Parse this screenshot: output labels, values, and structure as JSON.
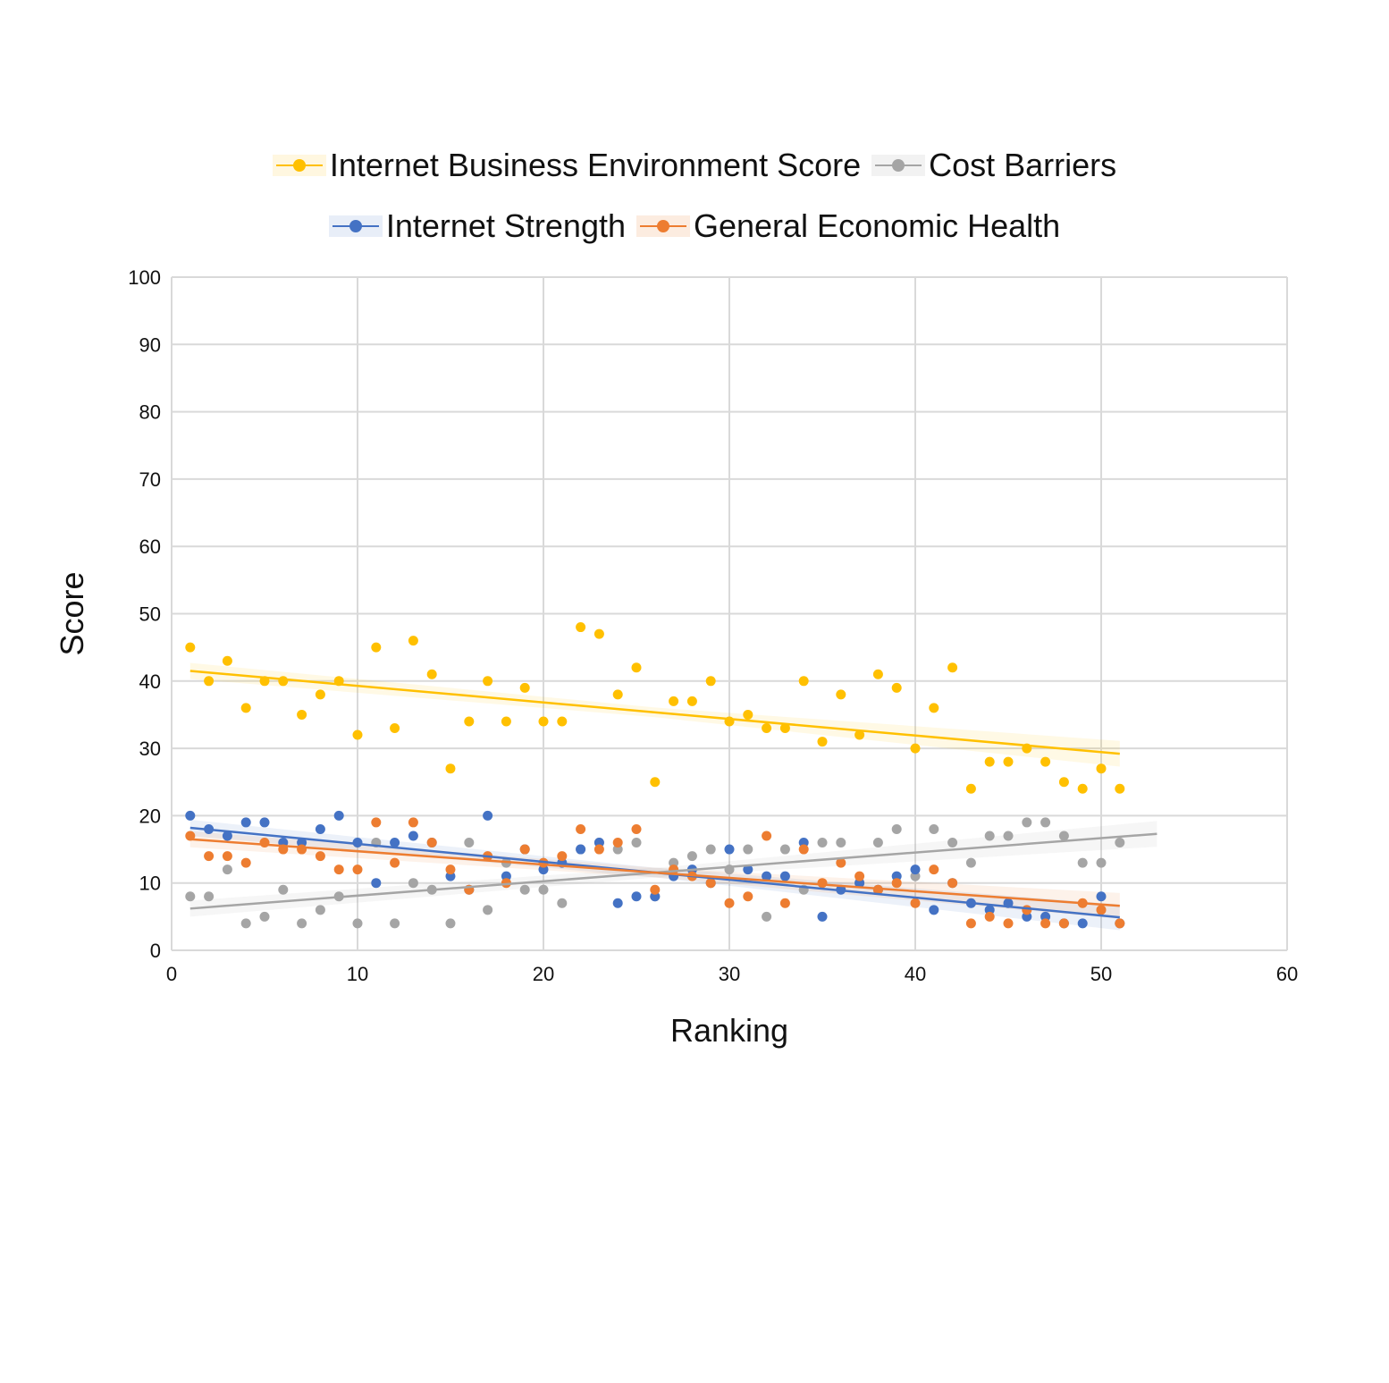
{
  "chart_data": {
    "type": "scatter",
    "title": "",
    "xlabel": "Ranking",
    "ylabel": "Score",
    "xlim": [
      0,
      60
    ],
    "ylim": [
      0,
      100
    ],
    "x_ticks": [
      0,
      10,
      20,
      30,
      40,
      50,
      60
    ],
    "y_ticks": [
      0,
      10,
      20,
      30,
      40,
      50,
      60,
      70,
      80,
      90,
      100
    ],
    "grid": true,
    "legend_placement": "top",
    "series": [
      {
        "name": "Internet Business Environment Score",
        "color": "#FFC000",
        "x": [
          1,
          2,
          3,
          4,
          5,
          6,
          7,
          8,
          9,
          10,
          11,
          12,
          13,
          14,
          15,
          16,
          17,
          18,
          19,
          20,
          21,
          22,
          23,
          24,
          25,
          26,
          27,
          28,
          29,
          30,
          31,
          32,
          33,
          34,
          35,
          36,
          37,
          38,
          39,
          40,
          41,
          42,
          43,
          44,
          45,
          46,
          47,
          48,
          49,
          50,
          51
        ],
        "y": [
          45,
          40,
          43,
          36,
          40,
          40,
          35,
          38,
          40,
          32,
          45,
          33,
          46,
          41,
          27,
          34,
          40,
          34,
          39,
          34,
          34,
          48,
          47,
          38,
          42,
          25,
          37,
          37,
          40,
          34,
          35,
          33,
          33,
          40,
          31,
          38,
          32,
          41,
          39,
          30,
          36,
          42,
          24,
          28,
          28,
          30,
          28,
          25,
          24,
          27,
          24
        ],
        "trendline": {
          "x": [
            1,
            51
          ],
          "y": [
            41.5,
            29.2
          ]
        }
      },
      {
        "name": "Cost Barriers",
        "color": "#A5A5A5",
        "x": [
          1,
          2,
          3,
          4,
          5,
          6,
          7,
          8,
          9,
          10,
          11,
          12,
          13,
          14,
          15,
          16,
          17,
          18,
          19,
          20,
          21,
          22,
          23,
          24,
          25,
          26,
          27,
          28,
          29,
          30,
          31,
          32,
          33,
          34,
          35,
          36,
          37,
          38,
          39,
          40,
          41,
          42,
          43,
          44,
          45,
          46,
          47,
          48,
          49,
          50,
          51
        ],
        "y": [
          8,
          8,
          12,
          4,
          5,
          9,
          4,
          6,
          8,
          4,
          16,
          4,
          10,
          9,
          4,
          16,
          6,
          13,
          9,
          9,
          7,
          15,
          16,
          15,
          16,
          8,
          13,
          14,
          15,
          12,
          15,
          5,
          15,
          9,
          16,
          16,
          10,
          16,
          18,
          11,
          18,
          16,
          13,
          17,
          17,
          19,
          19,
          17,
          13,
          13,
          16
        ],
        "trendline": {
          "x": [
            1,
            53
          ],
          "y": [
            6.2,
            17.3
          ]
        }
      },
      {
        "name": "Internet Strength",
        "color": "#4472C4",
        "x": [
          1,
          2,
          3,
          4,
          5,
          6,
          7,
          8,
          9,
          10,
          11,
          12,
          13,
          14,
          15,
          16,
          17,
          18,
          19,
          20,
          21,
          22,
          23,
          24,
          25,
          26,
          27,
          28,
          29,
          30,
          31,
          32,
          33,
          34,
          35,
          36,
          37,
          38,
          39,
          40,
          41,
          42,
          43,
          44,
          45,
          46,
          47,
          48,
          49,
          50,
          51
        ],
        "y": [
          20,
          18,
          17,
          19,
          19,
          16,
          16,
          18,
          20,
          16,
          10,
          16,
          17,
          16,
          11,
          9,
          20,
          11,
          15,
          12,
          13,
          15,
          16,
          7,
          8,
          8,
          11,
          12,
          10,
          15,
          12,
          11,
          11,
          16,
          5,
          9,
          10,
          9,
          11,
          12,
          6,
          10,
          7,
          6,
          7,
          5,
          5,
          4,
          4,
          8,
          4
        ],
        "trendline": {
          "x": [
            1,
            51
          ],
          "y": [
            18.2,
            4.9
          ]
        }
      },
      {
        "name": "General Economic Health",
        "color": "#ED7D31",
        "x": [
          1,
          2,
          3,
          4,
          5,
          6,
          7,
          8,
          9,
          10,
          11,
          12,
          13,
          14,
          15,
          16,
          17,
          18,
          19,
          20,
          21,
          22,
          23,
          24,
          25,
          26,
          27,
          28,
          29,
          30,
          31,
          32,
          33,
          34,
          35,
          36,
          37,
          38,
          39,
          40,
          41,
          42,
          43,
          44,
          45,
          46,
          47,
          48,
          49,
          50,
          51
        ],
        "y": [
          17,
          14,
          14,
          13,
          16,
          15,
          15,
          14,
          12,
          12,
          19,
          13,
          19,
          16,
          12,
          9,
          14,
          10,
          15,
          13,
          14,
          18,
          15,
          16,
          18,
          9,
          12,
          11,
          10,
          7,
          8,
          17,
          7,
          15,
          10,
          13,
          11,
          9,
          10,
          7,
          12,
          10,
          4,
          5,
          4,
          6,
          4,
          4,
          7,
          6,
          4
        ],
        "trendline": {
          "x": [
            1,
            51
          ],
          "y": [
            16.5,
            6.6
          ]
        }
      }
    ]
  }
}
